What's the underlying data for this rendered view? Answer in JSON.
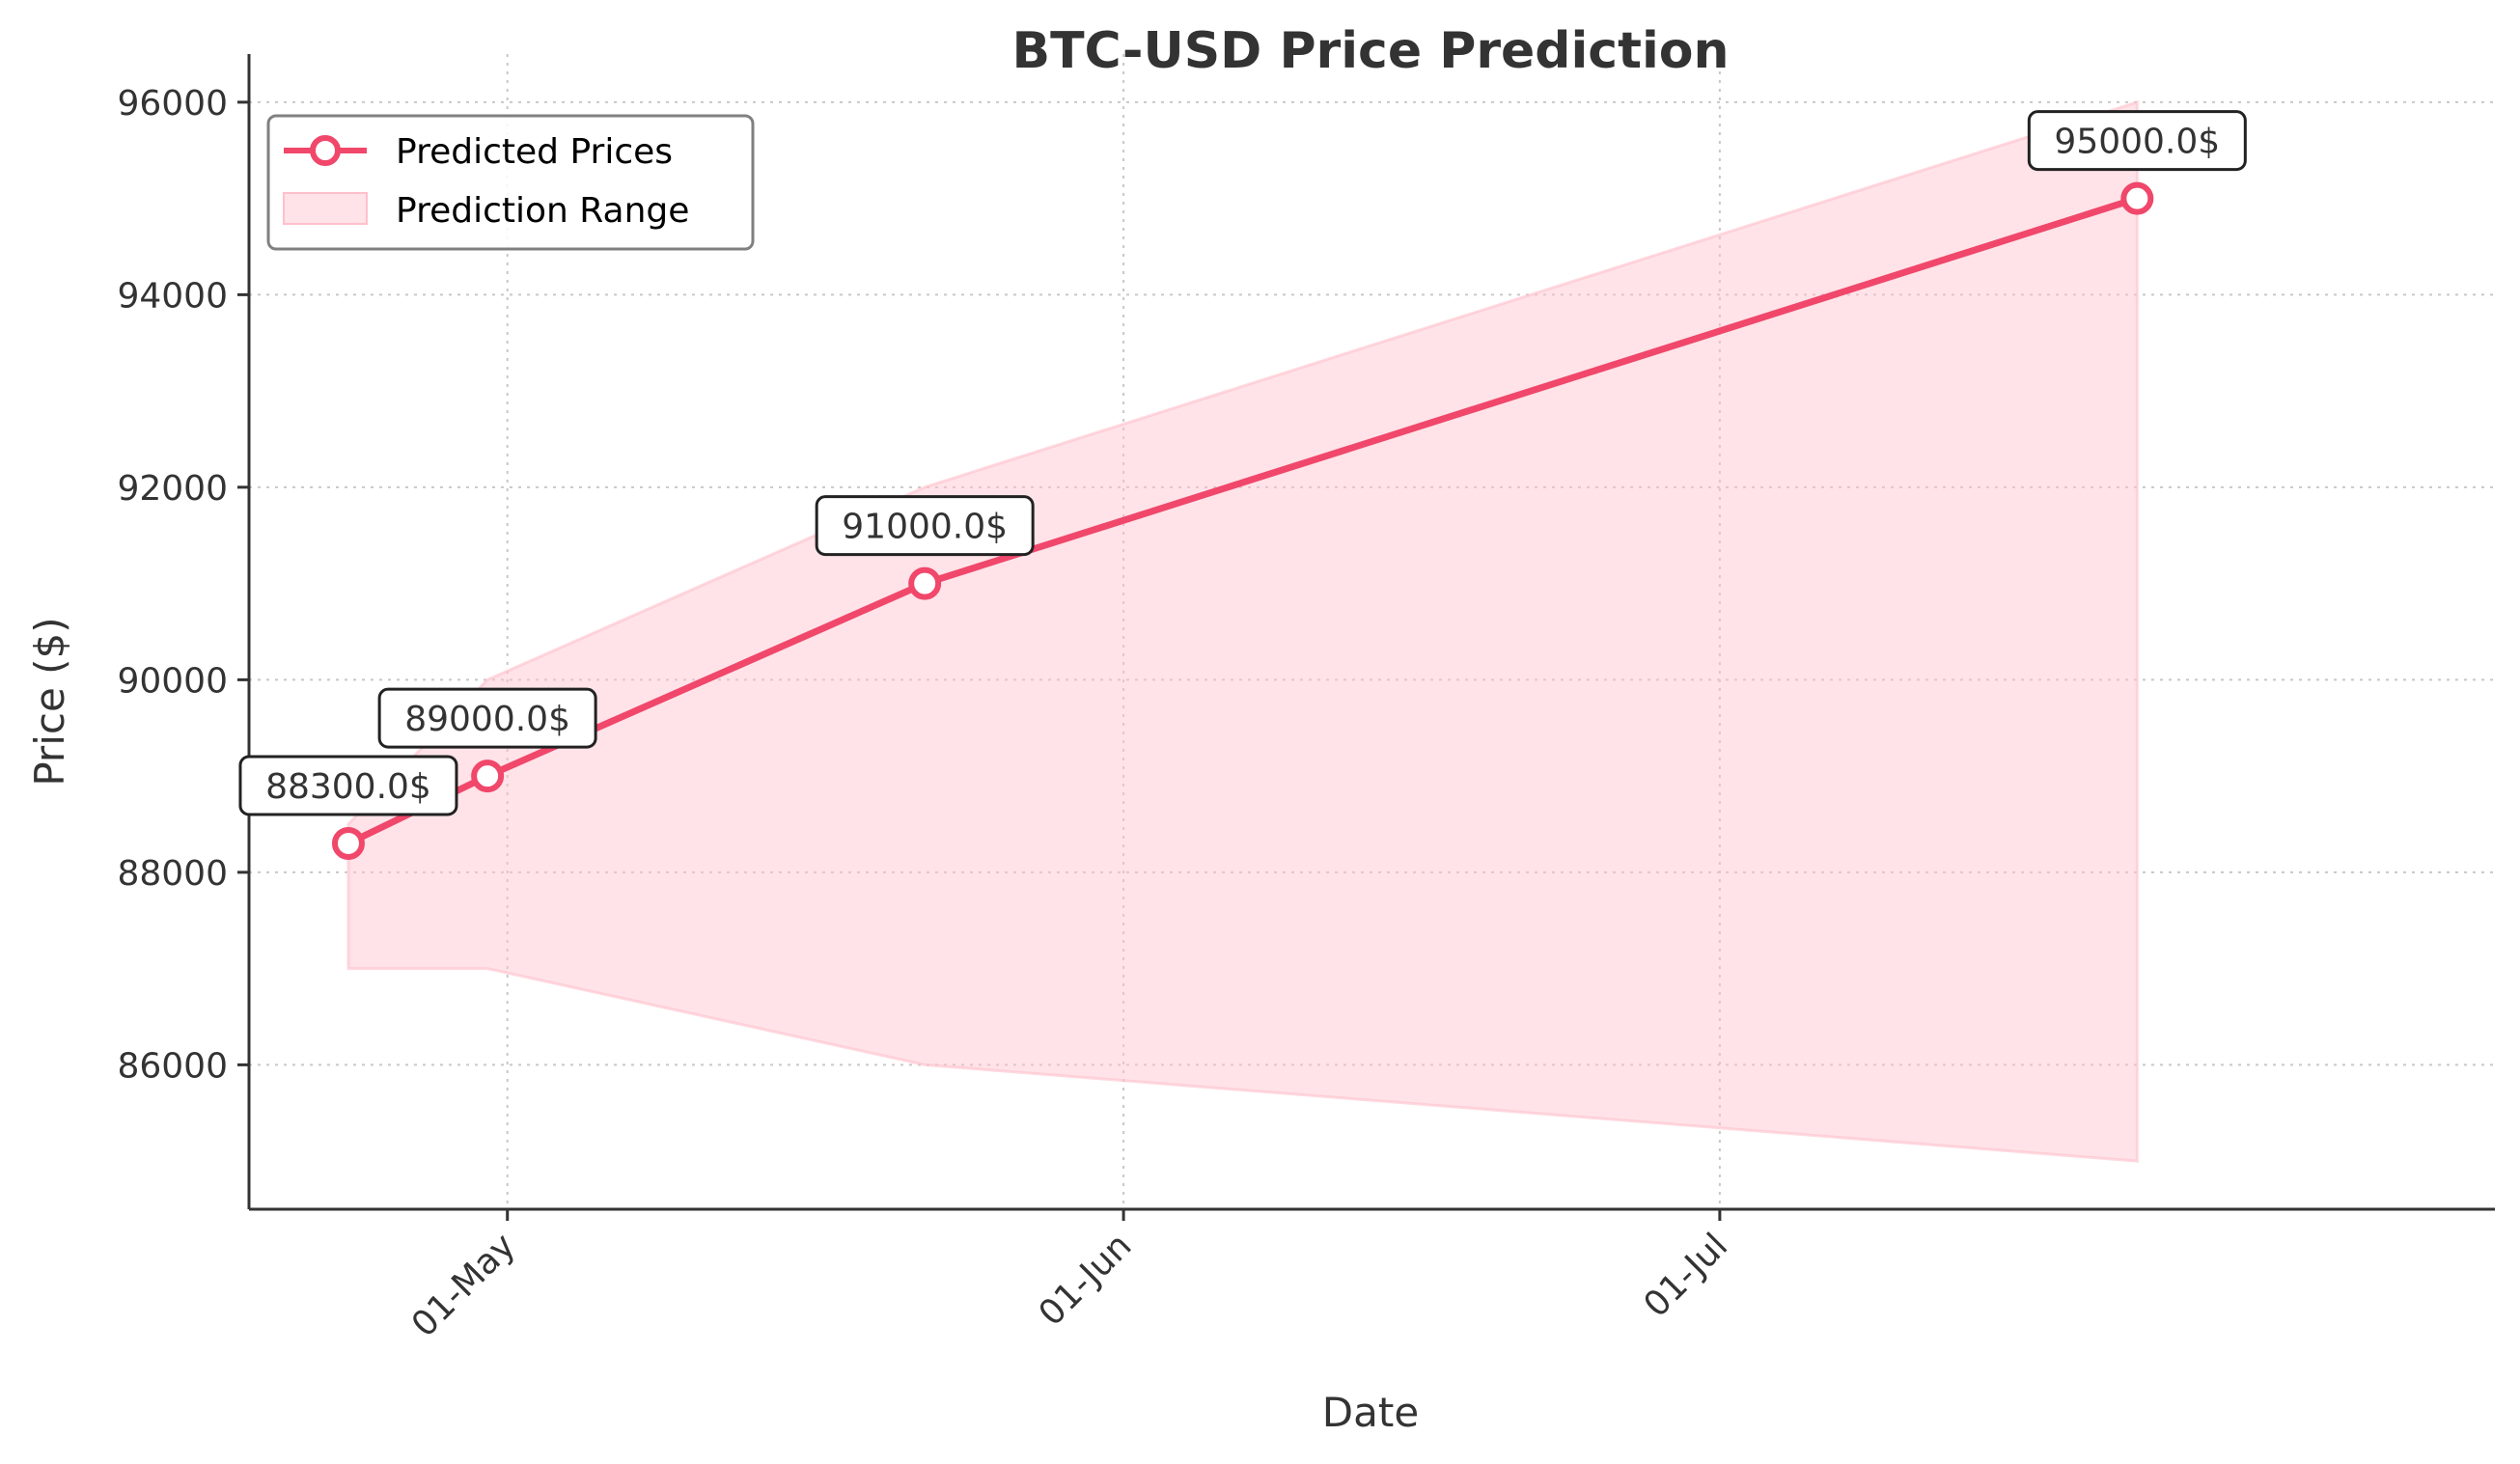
{
  "chart_data": {
    "type": "line",
    "title": "BTC-USD Price Prediction",
    "xlabel": "Date",
    "ylabel": "Price ($)",
    "x_ticks": [
      {
        "date": "2025-05-01",
        "label": "01-May"
      },
      {
        "date": "2025-06-01",
        "label": "01-Jun"
      },
      {
        "date": "2025-07-01",
        "label": "01-Jul"
      }
    ],
    "y_ticks": [
      86000,
      88000,
      90000,
      92000,
      94000,
      96000
    ],
    "xlim": [
      "2025-04-18",
      "2025-08-09"
    ],
    "ylim": [
      84500,
      96500
    ],
    "grid": true,
    "legend_position": "top-left",
    "series": [
      {
        "name": "Predicted Prices",
        "color": "#f0476b",
        "marker": "circle",
        "points": [
          {
            "date": "2025-04-23",
            "value": 88300,
            "label": "88300.0$"
          },
          {
            "date": "2025-04-30",
            "value": 89000,
            "label": "89000.0$"
          },
          {
            "date": "2025-05-22",
            "value": 91000,
            "label": "91000.0$"
          },
          {
            "date": "2025-07-22",
            "value": 95000,
            "label": "95000.0$"
          }
        ]
      }
    ],
    "range": {
      "name": "Prediction Range",
      "color": "#ffc0cb",
      "points": [
        {
          "date": "2025-04-23",
          "low": 87000,
          "high": 88500
        },
        {
          "date": "2025-04-30",
          "low": 87000,
          "high": 90000
        },
        {
          "date": "2025-05-22",
          "low": 86000,
          "high": 92000
        },
        {
          "date": "2025-07-22",
          "low": 85000,
          "high": 96000
        }
      ]
    }
  }
}
